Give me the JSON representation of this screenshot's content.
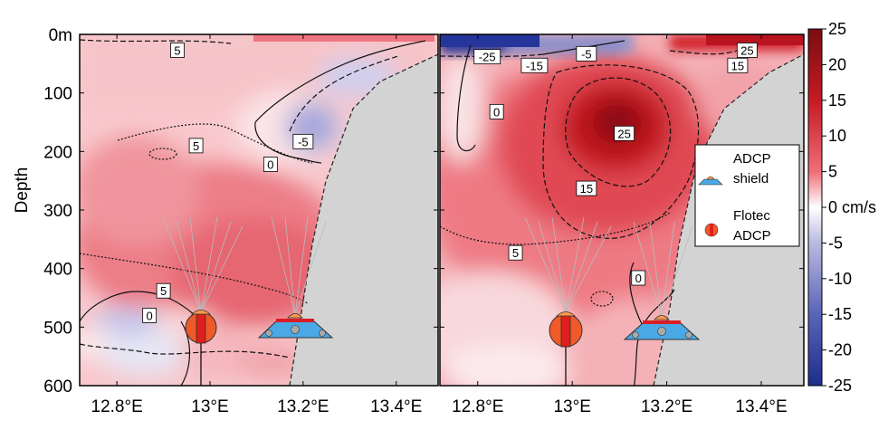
{
  "chart_data": {
    "type": "heatmap",
    "colorscale": {
      "min": -25,
      "max": 25,
      "low": "#1c2d8c",
      "zero": "#ffffff",
      "high": "#7a0e10"
    },
    "colorbar": {
      "ticks": [
        "25",
        "20",
        "15",
        "10",
        "5",
        "0 cm/s",
        "-5",
        "-10",
        "-15",
        "-20",
        "-25"
      ]
    },
    "ylabel": "Depth",
    "y_ticks": [
      "0m",
      "100",
      "200",
      "300",
      "400",
      "500",
      "600"
    ],
    "x_ticks": [
      "12.8°E",
      "13°E",
      "13.2°E",
      "13.4°E"
    ],
    "land_color": "#d3d3d3",
    "panels": [
      {
        "contour_labels": [
          {
            "text": "5",
            "x": 12.93,
            "y": 27
          },
          {
            "text": "5",
            "x": 12.97,
            "y": 190
          },
          {
            "text": "0",
            "x": 13.13,
            "y": 222
          },
          {
            "text": "-5",
            "x": 13.2,
            "y": 183
          },
          {
            "text": "5",
            "x": 12.9,
            "y": 438
          },
          {
            "text": "0",
            "x": 12.87,
            "y": 480
          }
        ],
        "moorings": [
          "Flotec ADCP",
          "ADCP shield"
        ]
      },
      {
        "contour_labels": [
          {
            "text": "-25",
            "x": 12.82,
            "y": 38
          },
          {
            "text": "-15",
            "x": 12.92,
            "y": 53
          },
          {
            "text": "-5",
            "x": 13.03,
            "y": 33
          },
          {
            "text": "25",
            "x": 13.37,
            "y": 27
          },
          {
            "text": "15",
            "x": 13.35,
            "y": 53
          },
          {
            "text": "0",
            "x": 12.84,
            "y": 132
          },
          {
            "text": "25",
            "x": 13.11,
            "y": 169
          },
          {
            "text": "15",
            "x": 13.03,
            "y": 263
          },
          {
            "text": "5",
            "x": 12.88,
            "y": 373
          },
          {
            "text": "0",
            "x": 13.14,
            "y": 416
          }
        ],
        "moorings": [
          "Flotec ADCP",
          "ADCP shield"
        ]
      }
    ],
    "legend": {
      "items": [
        "ADCP shield",
        "Flotec ADCP"
      ],
      "placement": "right of second panel"
    }
  }
}
